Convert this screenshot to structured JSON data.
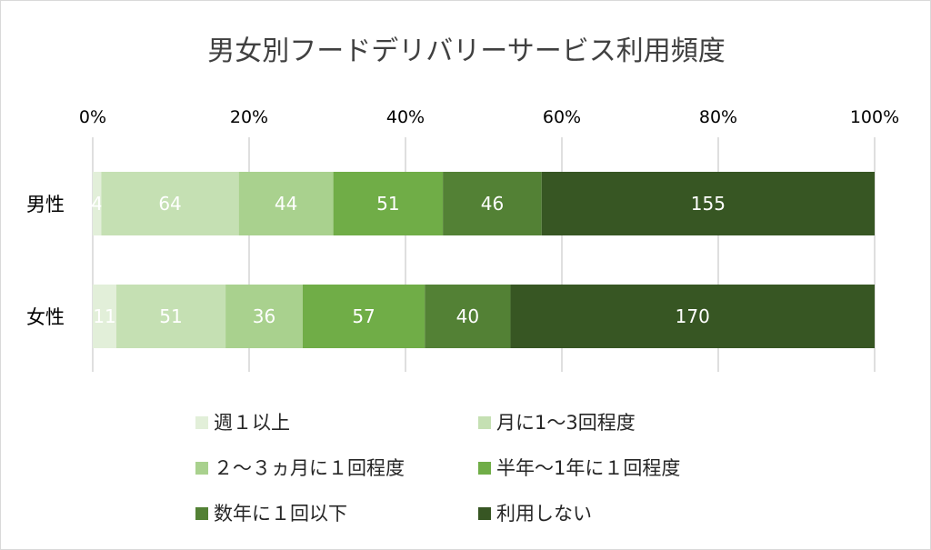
{
  "chart_data": {
    "type": "bar",
    "orientation": "horizontal",
    "stacked": "percent",
    "title": "男女別フードデリバリーサービス利用頻度",
    "categories": [
      "男性",
      "女性"
    ],
    "x_ticks": [
      "0%",
      "20%",
      "40%",
      "60%",
      "80%",
      "100%"
    ],
    "xlim": [
      0,
      100
    ],
    "grid": "vertical",
    "legend_position": "bottom",
    "series": [
      {
        "name": "週１以上",
        "color": "#e2efd9",
        "values": [
          4,
          11
        ]
      },
      {
        "name": "月に1〜3回程度",
        "color": "#c5e0b3",
        "values": [
          64,
          51
        ]
      },
      {
        "name": "２〜３ヵ月に１回程度",
        "color": "#a9d18e",
        "values": [
          44,
          36
        ]
      },
      {
        "name": "半年〜1年に１回程度",
        "color": "#70ad47",
        "values": [
          51,
          57
        ]
      },
      {
        "name": "数年に１回以下",
        "color": "#538135",
        "values": [
          46,
          40
        ]
      },
      {
        "name": "利用しない",
        "color": "#375623",
        "values": [
          155,
          170
        ]
      }
    ]
  }
}
